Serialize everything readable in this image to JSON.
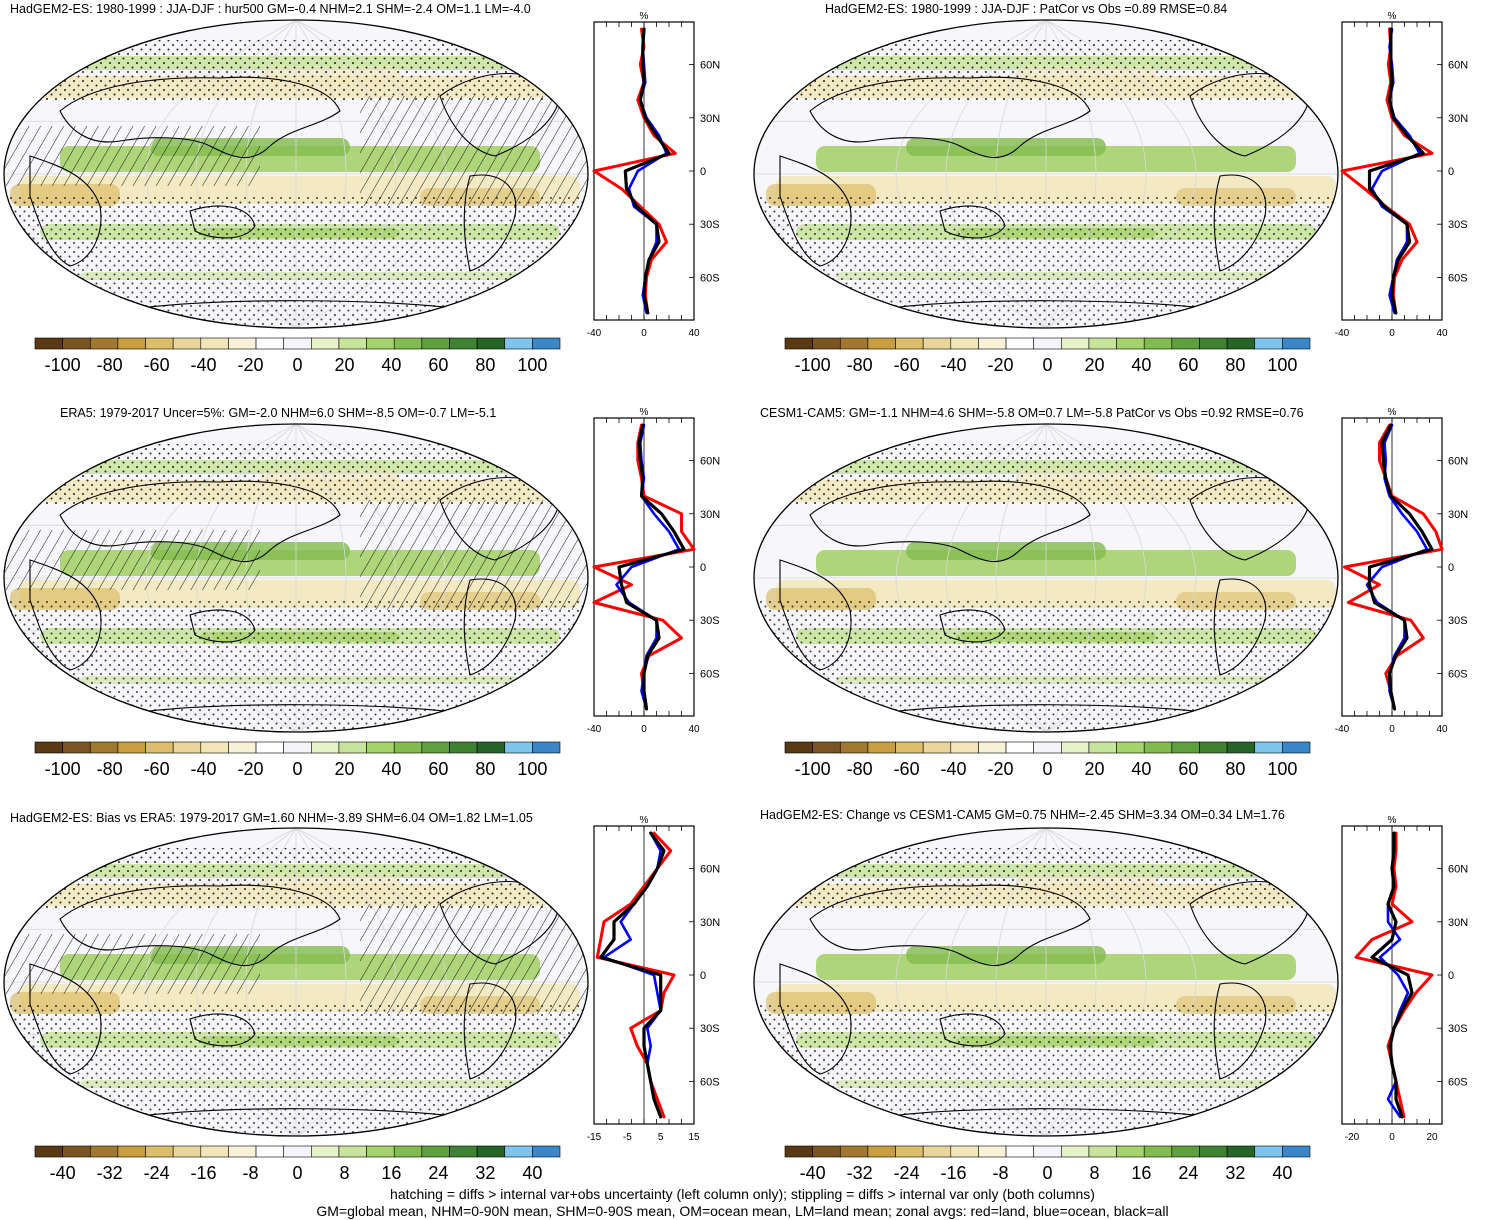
{
  "panels": [
    {
      "title": "HadGEM2-ES: 1980-1999 : JJA-DJF : hur500 GM=-0.4 NHM=2.1 SHM=-2.4 OM=1.1 LM=-4.0",
      "colorbar_labels": [
        "-100",
        "-80",
        "-60",
        "-40",
        "-20",
        "0",
        "20",
        "40",
        "60",
        "80",
        "100"
      ],
      "zonal_xticks": [
        "-40",
        "0",
        "40"
      ],
      "zonal_xrange": [
        -40,
        40
      ],
      "hatching": true
    },
    {
      "title": "HadGEM2-ES: 1980-1999 : JJA-DJF : PatCor vs Obs =0.89 RMSE=0.84",
      "colorbar_labels": [
        "-100",
        "-80",
        "-60",
        "-40",
        "-20",
        "0",
        "20",
        "40",
        "60",
        "80",
        "100"
      ],
      "zonal_xticks": [
        "-40",
        "0",
        "40"
      ],
      "zonal_xrange": [
        -40,
        40
      ],
      "hatching": false
    },
    {
      "title": "ERA5: 1979-2017 Uncer=5%: GM=-2.0 NHM=6.0 SHM=-8.5 OM=-0.7 LM=-5.1",
      "colorbar_labels": [
        "-100",
        "-80",
        "-60",
        "-40",
        "-20",
        "0",
        "20",
        "40",
        "60",
        "80",
        "100"
      ],
      "zonal_xticks": [
        "-40",
        "0",
        "40"
      ],
      "zonal_xrange": [
        -40,
        40
      ],
      "hatching": true
    },
    {
      "title": "CESM1-CAM5: GM=-1.1 NHM=4.6 SHM=-5.8 OM=0.7 LM=-5.8 PatCor vs Obs =0.92 RMSE=0.76",
      "colorbar_labels": [
        "-100",
        "-80",
        "-60",
        "-40",
        "-20",
        "0",
        "20",
        "40",
        "60",
        "80",
        "100"
      ],
      "zonal_xticks": [
        "-40",
        "0",
        "40"
      ],
      "zonal_xrange": [
        -40,
        40
      ],
      "hatching": false
    },
    {
      "title": "HadGEM2-ES: Bias vs ERA5: 1979-2017 GM=1.60 NHM=-3.89 SHM=6.04 OM=1.82 LM=1.05",
      "colorbar_labels": [
        "-40",
        "-32",
        "-24",
        "-16",
        "-8",
        "0",
        "8",
        "16",
        "24",
        "32",
        "40"
      ],
      "zonal_xticks": [
        "-15",
        "-5",
        "5",
        "15"
      ],
      "zonal_xrange": [
        -15,
        15
      ],
      "hatching": true
    },
    {
      "title": "HadGEM2-ES: Change vs CESM1-CAM5 GM=0.75 NHM=-2.45 SHM=3.34 OM=0.34 LM=1.76",
      "colorbar_labels": [
        "-40",
        "-32",
        "-24",
        "-16",
        "-8",
        "0",
        "8",
        "16",
        "24",
        "32",
        "40"
      ],
      "zonal_xticks": [
        "-20",
        "0",
        "20"
      ],
      "zonal_xrange": [
        -25,
        25
      ],
      "hatching": false
    }
  ],
  "zonal_ylabels": [
    "60N",
    "30N",
    "0",
    "30S",
    "60S"
  ],
  "zonal_unit": "%",
  "colorbar_colors": [
    "#5a3a14",
    "#7a5522",
    "#a0782e",
    "#c89e3e",
    "#dcbe6a",
    "#ead59a",
    "#f2e6b8",
    "#f7f1d8",
    "#ffffff",
    "#f4f4fa",
    "#e6f2c8",
    "#c8e49a",
    "#a6d26a",
    "#82bc4e",
    "#5ea03c",
    "#3e8232",
    "#266428",
    "#7ec4ec",
    "#3a86c8"
  ],
  "series_colors": {
    "land": "#ff0000",
    "ocean": "#0000ff",
    "all": "#000000"
  },
  "chart_data": [
    {
      "type": "line",
      "title": "HadGEM2-ES: 1980-1999 : JJA-DJF : hur500 GM=-0.4 NHM=2.1 SHM=-2.4 OM=1.1 LM=-4.0",
      "y": [
        80,
        70,
        60,
        50,
        40,
        30,
        20,
        10,
        0,
        -10,
        -20,
        -30,
        -40,
        -50,
        -60,
        -70,
        -80
      ],
      "series": [
        {
          "values": [
            -2,
            0,
            -3,
            0,
            -5,
            0,
            8,
            25,
            -40,
            -18,
            -3,
            12,
            18,
            6,
            2,
            1,
            3
          ]
        },
        {
          "values": [
            0,
            -1,
            0,
            1,
            -3,
            2,
            12,
            18,
            -5,
            -12,
            -8,
            10,
            10,
            4,
            1,
            -1,
            2
          ]
        },
        {
          "values": [
            0,
            -1,
            -1,
            0,
            -3,
            1,
            10,
            20,
            -15,
            -14,
            -6,
            10,
            12,
            4,
            1,
            0,
            3
          ]
        }
      ]
    },
    {
      "type": "line",
      "title": "HadGEM2-ES: 1980-1999 : JJA-DJF : PatCor vs Obs =0.89 RMSE=0.84",
      "y": [
        80,
        70,
        60,
        50,
        40,
        30,
        20,
        10,
        0,
        -10,
        -20,
        -30,
        -40,
        -50,
        -60,
        -70,
        -80
      ],
      "series": [
        {
          "values": [
            -2,
            -1,
            -3,
            -1,
            -4,
            0,
            10,
            32,
            -42,
            -22,
            -5,
            14,
            20,
            8,
            2,
            1,
            3
          ]
        },
        {
          "values": [
            0,
            -2,
            0,
            1,
            -2,
            2,
            14,
            22,
            -8,
            -16,
            -8,
            12,
            12,
            4,
            1,
            -2,
            2
          ]
        },
        {
          "values": [
            -1,
            -1,
            -1,
            0,
            -2,
            1,
            12,
            25,
            -18,
            -18,
            -6,
            12,
            14,
            5,
            1,
            0,
            3
          ]
        }
      ]
    },
    {
      "type": "line",
      "title": "ERA5: 1979-2017 Uncer=5%: GM=-2.0 NHM=6.0 SHM=-8.5 OM=-0.7 LM=-5.1",
      "y": [
        80,
        70,
        60,
        50,
        40,
        30,
        20,
        10,
        0,
        -10,
        -20,
        -30,
        -40,
        -50,
        -60,
        -70,
        -80
      ],
      "series": [
        {
          "values": [
            -2,
            -5,
            -5,
            -2,
            0,
            30,
            30,
            45,
            -40,
            -10,
            -40,
            15,
            30,
            4,
            -2,
            0,
            2
          ]
        },
        {
          "values": [
            0,
            -3,
            -2,
            0,
            -2,
            8,
            20,
            28,
            -10,
            -22,
            -12,
            10,
            10,
            2,
            0,
            -2,
            2
          ]
        },
        {
          "values": [
            -1,
            -4,
            -3,
            -1,
            -2,
            14,
            24,
            32,
            -20,
            -18,
            -14,
            10,
            12,
            3,
            0,
            0,
            2
          ]
        }
      ]
    },
    {
      "type": "line",
      "title": "CESM1-CAM5: GM=-1.1 NHM=4.6 SHM=-5.8 OM=0.7 LM=-5.8 PatCor vs Obs =0.92 RMSE=0.76",
      "y": [
        80,
        70,
        60,
        50,
        40,
        30,
        20,
        10,
        0,
        -10,
        -20,
        -30,
        -40,
        -50,
        -60,
        -70,
        -80
      ],
      "series": [
        {
          "values": [
            -2,
            -10,
            -10,
            -5,
            0,
            25,
            35,
            40,
            -38,
            -10,
            -35,
            15,
            25,
            4,
            -5,
            -1,
            2
          ]
        },
        {
          "values": [
            0,
            -6,
            -5,
            -6,
            -2,
            8,
            20,
            28,
            -8,
            -20,
            -12,
            10,
            10,
            2,
            -2,
            -2,
            2
          ]
        },
        {
          "values": [
            -1,
            -8,
            -7,
            -5,
            -1,
            14,
            24,
            32,
            -18,
            -18,
            -14,
            10,
            12,
            3,
            -2,
            -1,
            2
          ]
        }
      ]
    },
    {
      "type": "line",
      "title": "HadGEM2-ES: Bias vs ERA5: 1979-2017 GM=1.60 NHM=-3.89 SHM=6.04 OM=1.82 LM=1.05",
      "y": [
        80,
        70,
        60,
        50,
        40,
        30,
        20,
        10,
        0,
        -10,
        -20,
        -30,
        -40,
        -50,
        -60,
        -70,
        -80
      ],
      "series": [
        {
          "values": [
            3,
            8,
            4,
            0,
            -4,
            -12,
            -13,
            -14,
            9,
            6,
            5,
            -4,
            -2,
            1,
            2,
            4,
            6
          ]
        },
        {
          "values": [
            2,
            5,
            4,
            1,
            -3,
            -7,
            -4,
            -12,
            3,
            4,
            5,
            1,
            2,
            1,
            2,
            3,
            5
          ]
        },
        {
          "values": [
            2,
            6,
            4,
            1,
            -3,
            -9,
            -9,
            -13,
            5,
            5,
            5,
            0,
            0,
            1,
            2,
            3,
            5
          ]
        }
      ]
    },
    {
      "type": "line",
      "title": "HadGEM2-ES: Change vs CESM1-CAM5 GM=0.75 NHM=-2.45 SHM=3.34 OM=0.34 LM=1.76",
      "y": [
        80,
        70,
        60,
        50,
        40,
        30,
        20,
        10,
        0,
        -10,
        -20,
        -30,
        -40,
        -50,
        -60,
        -70,
        -80
      ],
      "series": [
        {
          "values": [
            2,
            2,
            1,
            2,
            0,
            10,
            -10,
            -18,
            20,
            12,
            6,
            1,
            -2,
            0,
            2,
            4,
            6
          ]
        },
        {
          "values": [
            1,
            1,
            0,
            1,
            -2,
            -2,
            4,
            -6,
            3,
            8,
            4,
            1,
            -1,
            0,
            2,
            -2,
            4
          ]
        },
        {
          "values": [
            1,
            1,
            0,
            1,
            -2,
            2,
            0,
            -10,
            8,
            10,
            5,
            1,
            -1,
            0,
            2,
            2,
            5
          ]
        }
      ]
    }
  ],
  "footer": {
    "line1": "hatching = diffs > internal var+obs uncertainty (left column only); stippling = diffs > internal var only (both columns)",
    "line2": "GM=global mean, NHM=0-90N mean, SHM=0-90S mean, OM=ocean mean, LM=land mean; zonal avgs: red=land, blue=ocean, black=all"
  }
}
